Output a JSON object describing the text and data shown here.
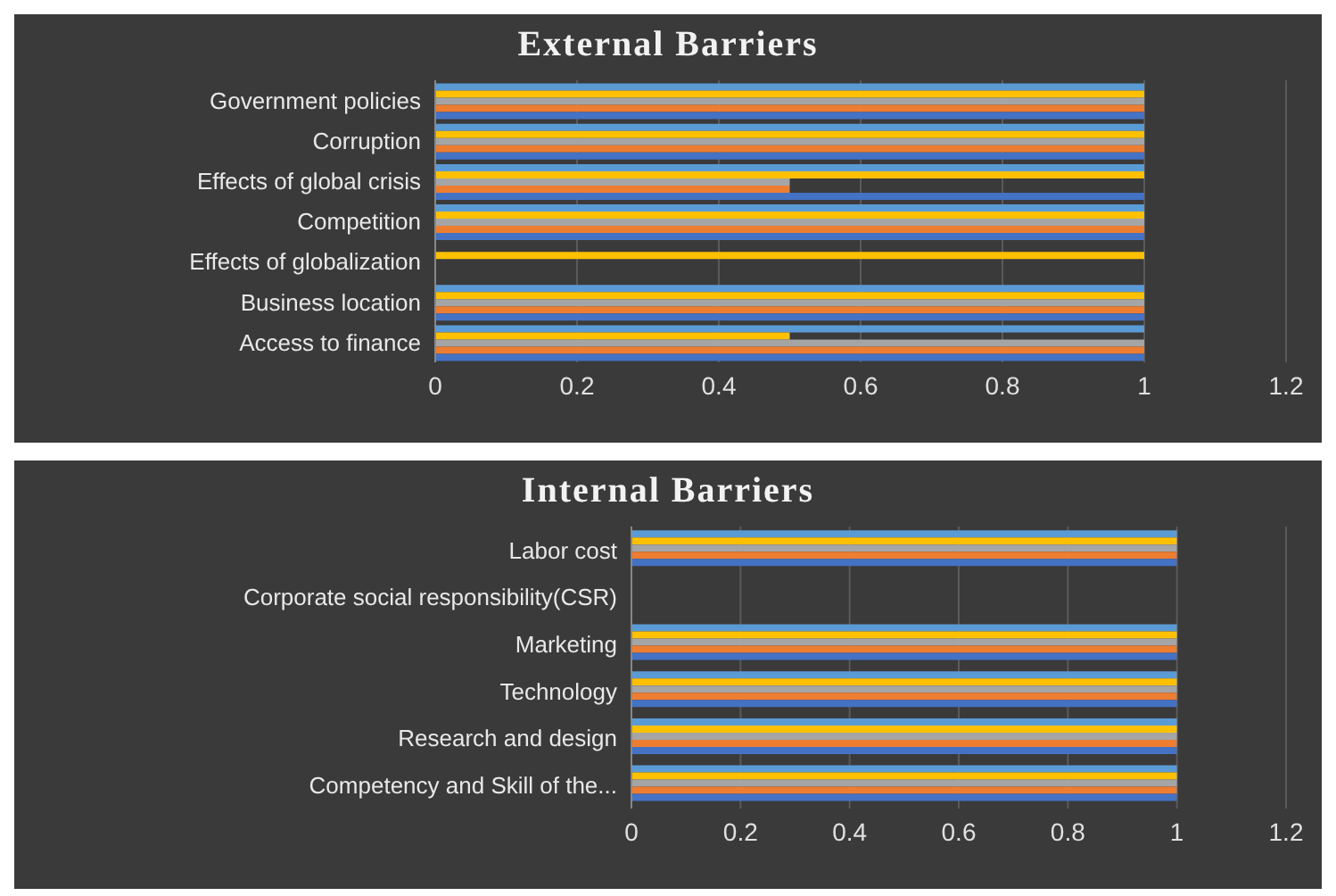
{
  "chart_data": [
    {
      "type": "bar",
      "orientation": "horizontal",
      "title": "External Barriers",
      "categories": [
        "Government policies",
        "Corruption",
        "Effects of global crisis",
        "Competition",
        "Effects of globalization",
        "Business location",
        "Access to finance"
      ],
      "series": [
        {
          "color": "#5b9bd5",
          "values": [
            1,
            1,
            1,
            1,
            0,
            1,
            1
          ]
        },
        {
          "color": "#ffc000",
          "values": [
            1,
            1,
            1,
            1,
            1,
            1,
            0.5
          ]
        },
        {
          "color": "#a5a5a5",
          "values": [
            1,
            1,
            0.5,
            1,
            0,
            1,
            1
          ]
        },
        {
          "color": "#ed7d31",
          "values": [
            1,
            1,
            0.5,
            1,
            0,
            1,
            1
          ]
        },
        {
          "color": "#4472c4",
          "values": [
            1,
            1,
            1,
            1,
            0,
            1,
            1
          ]
        }
      ],
      "xlim": [
        0,
        1.2
      ],
      "xticks": [
        0,
        0.2,
        0.4,
        0.6,
        0.8,
        1,
        1.2
      ],
      "grid": "x"
    },
    {
      "type": "bar",
      "orientation": "horizontal",
      "title": "Internal Barriers",
      "categories": [
        "Labor cost",
        "Corporate social responsibility(CSR)",
        "Marketing",
        "Technology",
        "Research and design",
        "Competency and Skill of the..."
      ],
      "series": [
        {
          "color": "#5b9bd5",
          "values": [
            1,
            0,
            1,
            1,
            1,
            1
          ]
        },
        {
          "color": "#ffc000",
          "values": [
            1,
            0,
            1,
            1,
            1,
            1
          ]
        },
        {
          "color": "#a5a5a5",
          "values": [
            1,
            0,
            1,
            1,
            1,
            1
          ]
        },
        {
          "color": "#ed7d31",
          "values": [
            1,
            0,
            1,
            1,
            1,
            1
          ]
        },
        {
          "color": "#4472c4",
          "values": [
            1,
            0,
            1,
            1,
            1,
            1
          ]
        }
      ],
      "xlim": [
        0,
        1.2
      ],
      "xticks": [
        0,
        0.2,
        0.4,
        0.6,
        0.8,
        1,
        1.2
      ],
      "grid": "x"
    }
  ]
}
